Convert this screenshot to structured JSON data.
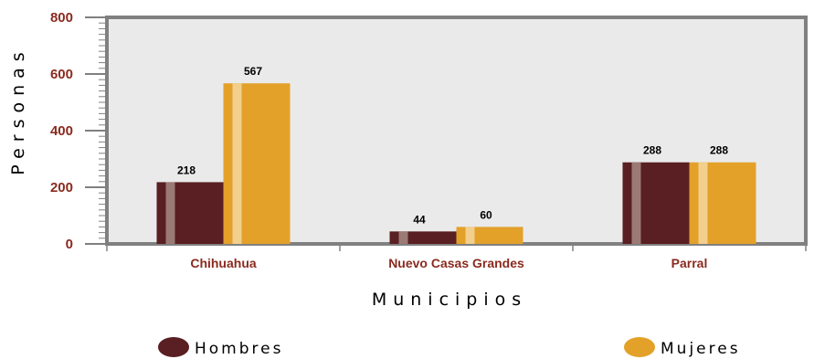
{
  "chart_data": {
    "type": "bar",
    "ylabel": "Personas",
    "xlabel": "Municipios",
    "categories": [
      "Chihuahua",
      "Nuevo Casas Grandes",
      "Parral"
    ],
    "series": [
      {
        "name": "Hombres",
        "values": [
          218,
          44,
          288
        ],
        "color": "#5a1f22",
        "highlight": "#9b7a76"
      },
      {
        "name": "Mujeres",
        "values": [
          567,
          60,
          288
        ],
        "color": "#e3a12a",
        "highlight": "#f2cf8c"
      }
    ],
    "ylim": [
      0,
      800
    ],
    "yticks": [
      "0",
      "200",
      "400",
      "600",
      "800"
    ],
    "grid": false,
    "legend_position": "bottom",
    "colors": {
      "plot_background": "#eaeaea",
      "axis": "#808080",
      "tick_label": "#8b2a1f",
      "text": "#000000"
    }
  }
}
